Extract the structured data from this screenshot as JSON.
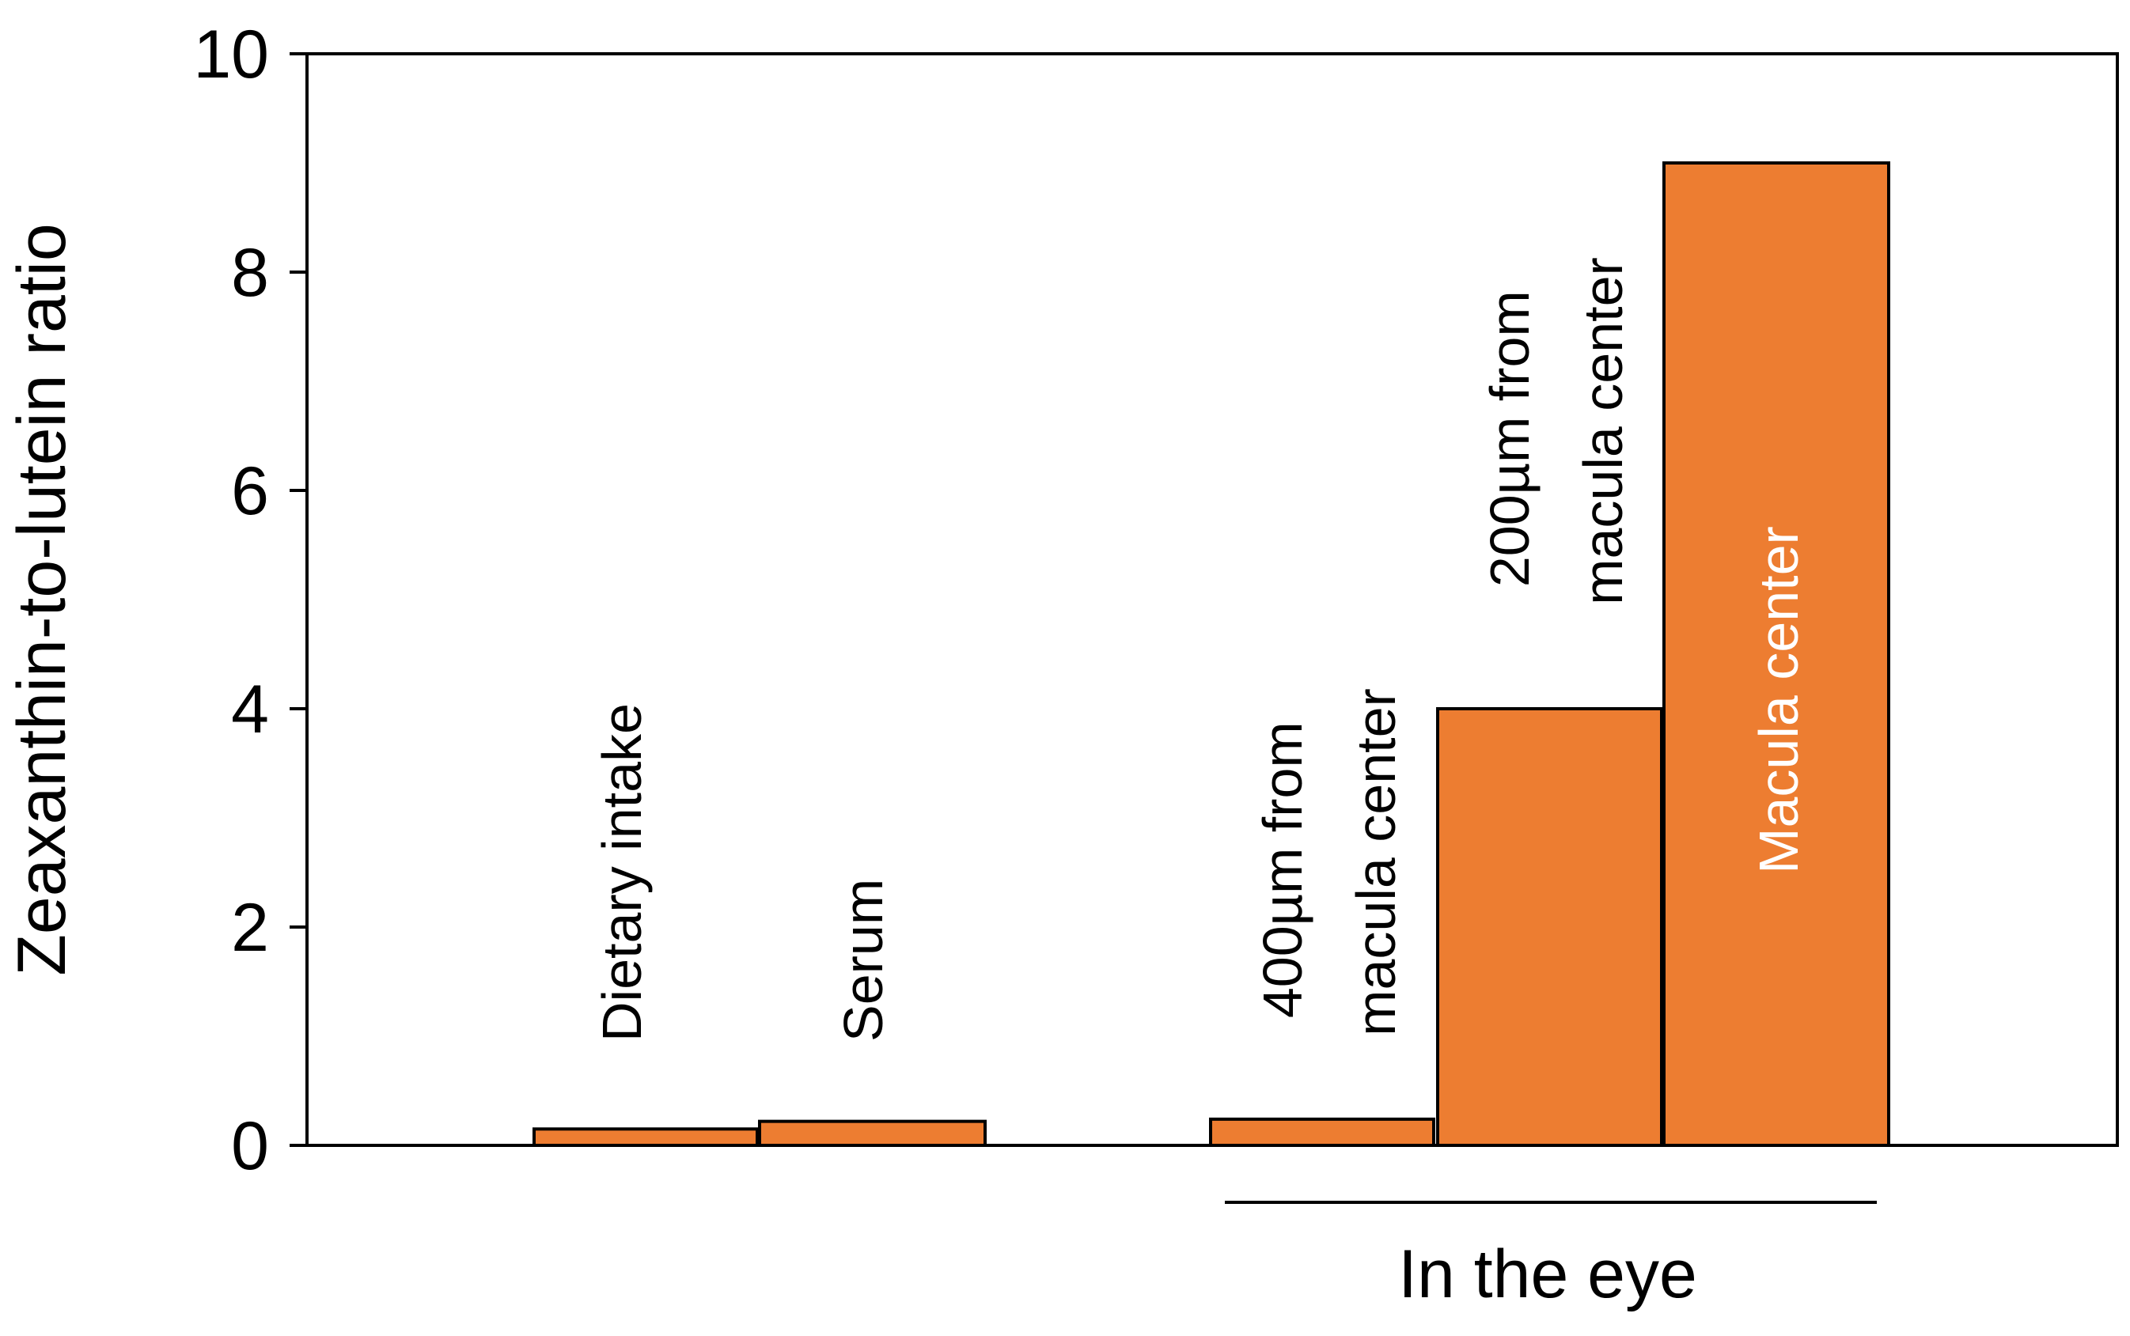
{
  "chart_data": {
    "type": "bar",
    "ylabel": "Zeaxanthin-to-lutein ratio",
    "ylim": [
      0,
      10
    ],
    "yticks": [
      0,
      2,
      4,
      6,
      8,
      10
    ],
    "grid": false,
    "legend": "none",
    "bar_color": "#ED7D31",
    "bars": [
      {
        "label": "Dietary intake",
        "value": 0.15
      },
      {
        "label": "Serum",
        "value": 0.22
      },
      {
        "label": "400µm from macula center",
        "value": 0.24
      },
      {
        "label": "200µm from macula center",
        "value": 4.0
      },
      {
        "label": "Macula center",
        "value": 9.0
      }
    ],
    "group_label": "In the eye"
  }
}
